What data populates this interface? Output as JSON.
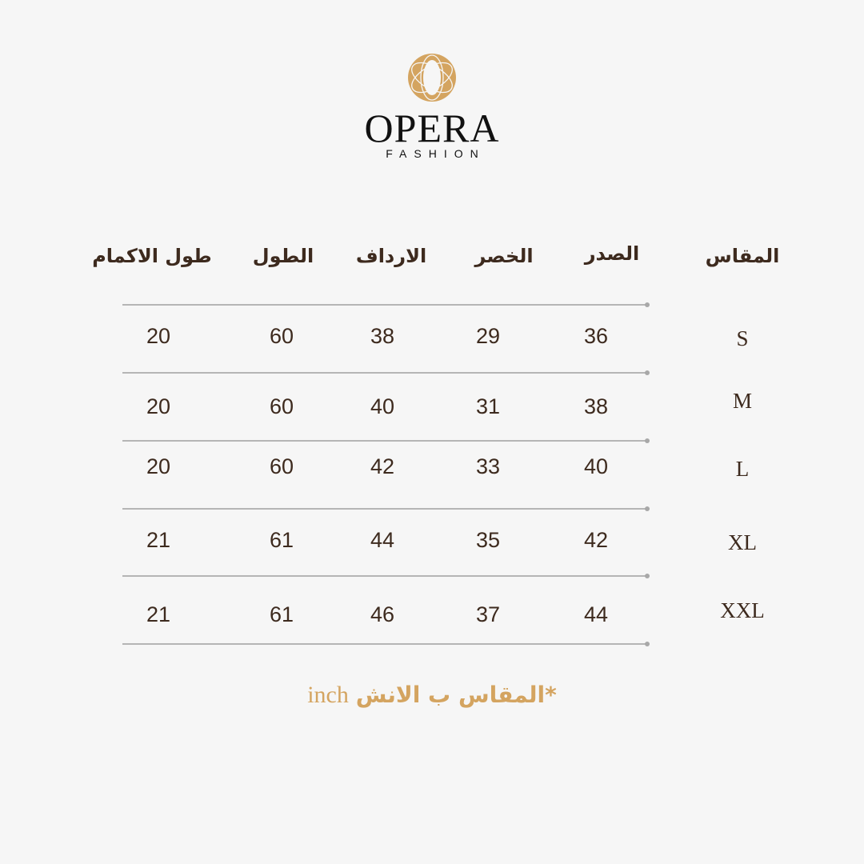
{
  "brand": {
    "name": "OPERA",
    "tagline": "FASHION",
    "logo_color": "#d4a460"
  },
  "table": {
    "headers": [
      "المقاس",
      "الصدر",
      "الخصر",
      "الارداف",
      "الطول",
      "طول الاكمام"
    ],
    "rows": [
      {
        "size": "S",
        "chest": "36",
        "waist": "29",
        "hips": "38",
        "length": "60",
        "sleeve": "20"
      },
      {
        "size": "M",
        "chest": "38",
        "waist": "31",
        "hips": "40",
        "length": "60",
        "sleeve": "20"
      },
      {
        "size": "L",
        "chest": "40",
        "waist": "33",
        "hips": "42",
        "length": "60",
        "sleeve": "20"
      },
      {
        "size": "XL",
        "chest": "42",
        "waist": "35",
        "hips": "44",
        "length": "61",
        "sleeve": "21"
      },
      {
        "size": "XXL",
        "chest": "44",
        "waist": "37",
        "hips": "46",
        "length": "61",
        "sleeve": "21"
      }
    ]
  },
  "note": {
    "arabic": "*المقاس ب الانش",
    "english": "inch",
    "color": "#d4a460"
  },
  "colors": {
    "text": "#3d2a1e",
    "background": "#f6f6f6",
    "divider": "#b5b5b5"
  }
}
